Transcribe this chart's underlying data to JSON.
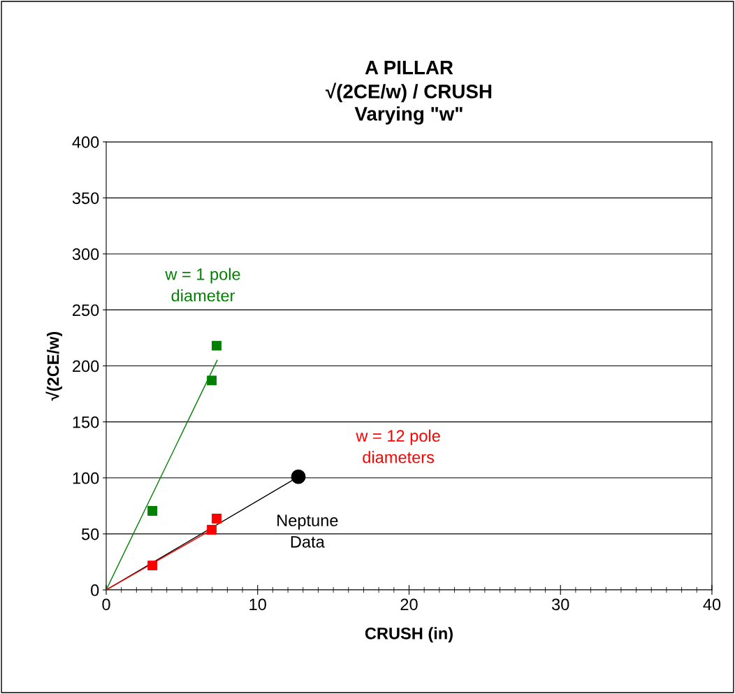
{
  "chart_data": {
    "type": "scatter",
    "title": "A PILLAR\n√(2CE/w) / CRUSH\nVarying \"w\"",
    "xlabel": "CRUSH (in)",
    "ylabel": "√(2CE/w)",
    "xlim": [
      0,
      40
    ],
    "xticks": [
      0,
      10,
      20,
      30,
      40
    ],
    "ylim": [
      0,
      400
    ],
    "yticks": [
      0,
      50,
      100,
      150,
      200,
      250,
      300,
      350,
      400
    ],
    "grid": "y",
    "legend": false,
    "series": [
      {
        "name": "w = 1 pole\ndiameter",
        "marker": "square",
        "color": "#008000",
        "x": [
          3.05,
          6.97,
          7.29
        ],
        "values": [
          70.5,
          187,
          218
        ]
      },
      {
        "type": "line",
        "marker": "none",
        "color": "#008000",
        "x": [
          0,
          7.33
        ],
        "values": [
          0,
          205
        ]
      },
      {
        "type": "line",
        "marker": "none",
        "color": "#000000",
        "x": [
          0,
          12.69
        ],
        "values": [
          0,
          101
        ]
      },
      {
        "type": "line",
        "marker": "none",
        "color": "#ff0000",
        "x": [
          0,
          7.0
        ],
        "values": [
          0,
          54
        ]
      },
      {
        "name": "w = 12 pole\ndiameters",
        "marker": "square",
        "color": "#ff0000",
        "x": [
          3.05,
          6.97,
          7.29
        ],
        "values": [
          21.8,
          53.7,
          63.7
        ]
      },
      {
        "marker": "circle",
        "color": "#000000",
        "x": [
          12.69
        ],
        "values": [
          101
        ]
      }
    ],
    "annotations": [
      "Neptune\nData"
    ]
  }
}
